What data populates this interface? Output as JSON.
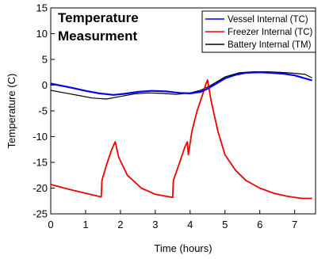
{
  "chart_data": {
    "type": "line",
    "title": "Temperature Measurment",
    "title_lines": [
      "Temperature",
      "Measurment"
    ],
    "xlabel": "Time (hours)",
    "ylabel": "Temperature (C)",
    "xlim": [
      0,
      7.6
    ],
    "ylim": [
      -25,
      15
    ],
    "xticks": [
      0,
      1,
      2,
      3,
      4,
      5,
      6,
      7
    ],
    "yticks": [
      -25,
      -20,
      -15,
      -10,
      -5,
      0,
      5,
      10,
      15
    ],
    "grid": false,
    "legend_position": "top-right",
    "series": [
      {
        "name": "Vessel Internal (TC)",
        "color": "#0000ee",
        "x": [
          0,
          0.3,
          0.6,
          1.0,
          1.4,
          1.8,
          2.1,
          2.5,
          2.9,
          3.3,
          3.7,
          4.0,
          4.3,
          4.5,
          4.8,
          5.0,
          5.3,
          5.6,
          6.0,
          6.3,
          6.7,
          7.0,
          7.3,
          7.5
        ],
        "y": [
          0.3,
          -0.1,
          -0.5,
          -1.1,
          -1.6,
          -1.9,
          -1.7,
          -1.3,
          -1.1,
          -1.2,
          -1.5,
          -1.6,
          -1.3,
          -0.7,
          0.5,
          1.3,
          2.0,
          2.4,
          2.5,
          2.4,
          2.2,
          1.9,
          1.3,
          0.9
        ]
      },
      {
        "name": "Freezer Internal (TC)",
        "color": "#ee0000",
        "x": [
          0,
          0.5,
          1.0,
          1.45,
          1.47,
          1.6,
          1.75,
          1.85,
          1.95,
          2.2,
          2.6,
          3.0,
          3.5,
          3.52,
          3.7,
          3.85,
          3.92,
          3.95,
          4.05,
          4.2,
          4.35,
          4.45,
          4.5,
          4.6,
          4.8,
          5.0,
          5.3,
          5.6,
          6.0,
          6.4,
          6.8,
          7.2,
          7.5
        ],
        "y": [
          -19.3,
          -20.2,
          -21.0,
          -21.7,
          -18.5,
          -15.5,
          -12.5,
          -11.0,
          -14.0,
          -17.5,
          -20.0,
          -21.2,
          -21.8,
          -18.5,
          -15.0,
          -12.0,
          -11.0,
          -13.5,
          -9.0,
          -5.0,
          -2.0,
          0.2,
          1.0,
          -3.0,
          -9.0,
          -13.5,
          -16.5,
          -18.5,
          -20.0,
          -21.0,
          -21.6,
          -22.0,
          -22.0
        ]
      },
      {
        "name": "Battery Internal (TM)",
        "color": "#000000",
        "x": [
          0,
          0.4,
          0.8,
          1.2,
          1.6,
          2.0,
          2.4,
          2.8,
          3.2,
          3.6,
          4.0,
          4.3,
          4.6,
          5.0,
          5.4,
          5.8,
          6.2,
          6.6,
          7.0,
          7.3,
          7.5
        ],
        "y": [
          -1.0,
          -1.5,
          -2.0,
          -2.5,
          -2.7,
          -2.2,
          -1.7,
          -1.5,
          -1.6,
          -1.8,
          -1.5,
          -1.0,
          0.0,
          1.6,
          2.4,
          2.6,
          2.6,
          2.5,
          2.3,
          2.1,
          1.4
        ]
      }
    ]
  }
}
